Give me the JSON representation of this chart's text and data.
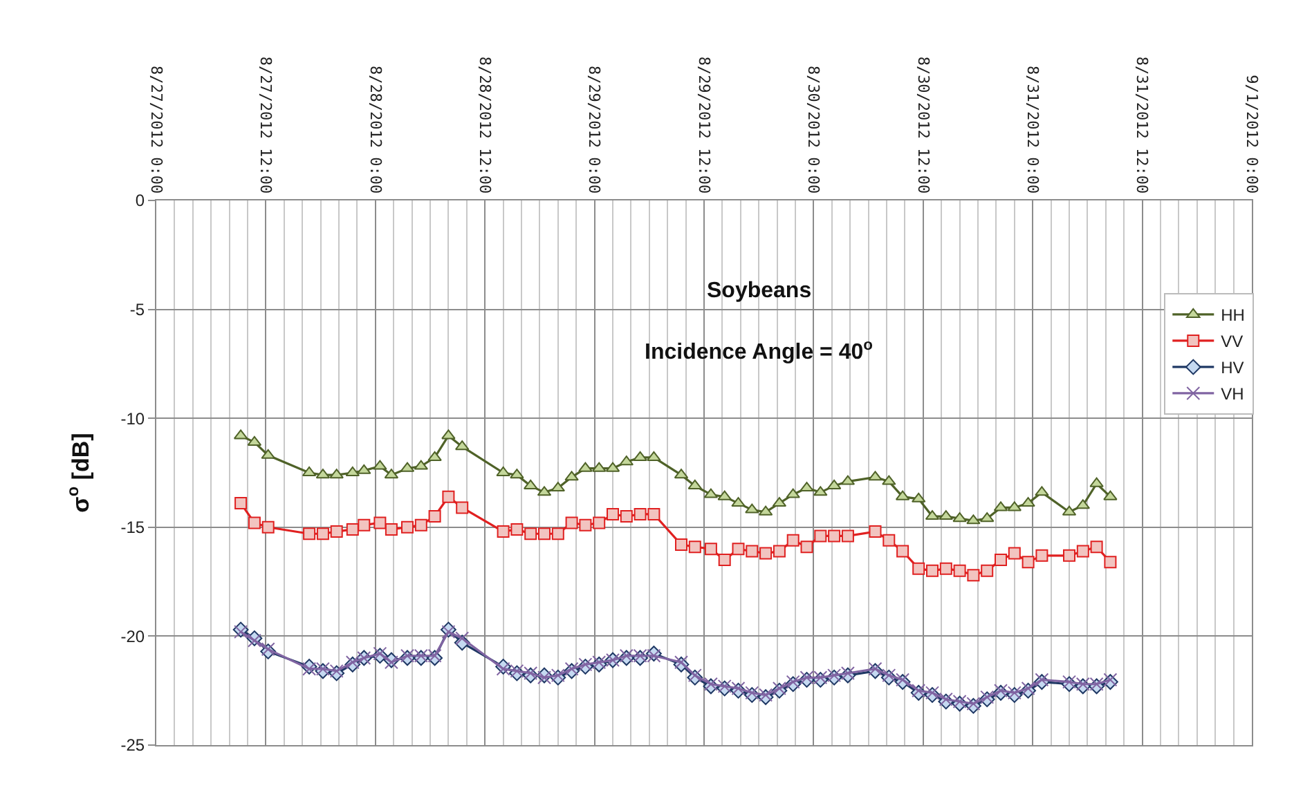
{
  "chart_data": {
    "type": "line",
    "title": "Soybeans",
    "subtitle": "Incidence Angle = 40$^{o}$",
    "ylabel": "σ$^{o}$ [dB]",
    "x": [
      "2012-08-27T09:15",
      "2012-08-27T10:45",
      "2012-08-27T12:15",
      "2012-08-27T16:45",
      "2012-08-27T18:15",
      "2012-08-27T19:45",
      "2012-08-27T21:30",
      "2012-08-27T22:45",
      "2012-08-28T00:30",
      "2012-08-28T01:45",
      "2012-08-28T03:30",
      "2012-08-28T05:00",
      "2012-08-28T06:30",
      "2012-08-28T08:00",
      "2012-08-28T09:30",
      "2012-08-28T14:00",
      "2012-08-28T15:30",
      "2012-08-28T17:00",
      "2012-08-28T18:30",
      "2012-08-28T20:00",
      "2012-08-28T21:30",
      "2012-08-28T23:00",
      "2012-08-29T00:30",
      "2012-08-29T02:00",
      "2012-08-29T03:30",
      "2012-08-29T05:00",
      "2012-08-29T06:30",
      "2012-08-29T09:30",
      "2012-08-29T11:00",
      "2012-08-29T12:45",
      "2012-08-29T14:15",
      "2012-08-29T15:45",
      "2012-08-29T17:15",
      "2012-08-29T18:45",
      "2012-08-29T20:15",
      "2012-08-29T21:45",
      "2012-08-29T23:15",
      "2012-08-30T00:45",
      "2012-08-30T02:15",
      "2012-08-30T03:45",
      "2012-08-30T06:45",
      "2012-08-30T08:15",
      "2012-08-30T09:45",
      "2012-08-30T11:30",
      "2012-08-30T13:00",
      "2012-08-30T14:30",
      "2012-08-30T16:00",
      "2012-08-30T17:30",
      "2012-08-30T19:00",
      "2012-08-30T20:30",
      "2012-08-30T22:00",
      "2012-08-30T23:30",
      "2012-08-31T01:00",
      "2012-08-31T04:00",
      "2012-08-31T05:30",
      "2012-08-31T07:00",
      "2012-08-31T08:30"
    ],
    "series": [
      {
        "name": "HH",
        "color": "#4f6228",
        "marker": "triangle",
        "values": [
          -10.8,
          -11.1,
          -11.7,
          -12.5,
          -12.6,
          -12.6,
          -12.5,
          -12.4,
          -12.2,
          -12.6,
          -12.3,
          -12.2,
          -11.8,
          -10.8,
          -11.3,
          -12.5,
          -12.6,
          -13.1,
          -13.4,
          -13.2,
          -12.7,
          -12.3,
          -12.3,
          -12.3,
          -12.0,
          -11.8,
          -11.8,
          -12.6,
          -13.1,
          -13.5,
          -13.6,
          -13.9,
          -14.2,
          -14.3,
          -13.9,
          -13.5,
          -13.2,
          -13.4,
          -13.1,
          -12.9,
          -12.7,
          -12.9,
          -13.6,
          -13.7,
          -14.5,
          -14.5,
          -14.6,
          -14.7,
          -14.6,
          -14.1,
          -14.1,
          -13.9,
          -13.4,
          -14.3,
          -14.0,
          -13.0,
          -13.6
        ]
      },
      {
        "name": "VV",
        "color": "#e02020",
        "marker": "square",
        "values": [
          -13.9,
          -14.8,
          -15.0,
          -15.3,
          -15.3,
          -15.2,
          -15.1,
          -14.9,
          -14.8,
          -15.1,
          -15.0,
          -14.9,
          -14.5,
          -13.6,
          -14.1,
          -15.2,
          -15.1,
          -15.3,
          -15.3,
          -15.3,
          -14.8,
          -14.9,
          -14.8,
          -14.4,
          -14.5,
          -14.4,
          -14.4,
          -15.8,
          -15.9,
          -16.0,
          -16.5,
          -16.0,
          -16.1,
          -16.2,
          -16.1,
          -15.6,
          -15.9,
          -15.4,
          -15.4,
          -15.4,
          -15.2,
          -15.6,
          -16.1,
          -16.9,
          -17.0,
          -16.9,
          -17.0,
          -17.2,
          -17.0,
          -16.5,
          -16.2,
          -16.6,
          -16.3,
          -16.3,
          -16.1,
          -15.9,
          -16.6
        ]
      },
      {
        "name": "HV",
        "color": "#1f3864",
        "marker": "diamond",
        "values": [
          -19.7,
          -20.1,
          -20.7,
          -21.4,
          -21.6,
          -21.7,
          -21.3,
          -21.0,
          -20.9,
          -21.1,
          -21.0,
          -21.0,
          -21.0,
          -19.7,
          -20.3,
          -21.4,
          -21.7,
          -21.8,
          -21.8,
          -21.9,
          -21.6,
          -21.4,
          -21.3,
          -21.1,
          -21.0,
          -21.0,
          -20.8,
          -21.3,
          -21.9,
          -22.3,
          -22.4,
          -22.5,
          -22.7,
          -22.8,
          -22.5,
          -22.2,
          -22.0,
          -22.0,
          -21.9,
          -21.8,
          -21.6,
          -21.9,
          -22.1,
          -22.6,
          -22.7,
          -23.0,
          -23.1,
          -23.2,
          -22.9,
          -22.6,
          -22.7,
          -22.5,
          -22.1,
          -22.2,
          -22.3,
          -22.3,
          -22.1
        ]
      },
      {
        "name": "VH",
        "color": "#8064a2",
        "marker": "cross",
        "values": [
          -19.8,
          -20.2,
          -20.6,
          -21.5,
          -21.5,
          -21.6,
          -21.2,
          -21.0,
          -20.8,
          -21.2,
          -20.9,
          -20.9,
          -20.9,
          -19.8,
          -20.1,
          -21.5,
          -21.6,
          -21.7,
          -21.9,
          -21.8,
          -21.5,
          -21.3,
          -21.2,
          -21.1,
          -20.9,
          -20.9,
          -20.9,
          -21.2,
          -21.8,
          -22.2,
          -22.3,
          -22.4,
          -22.6,
          -22.7,
          -22.4,
          -22.1,
          -21.9,
          -21.9,
          -21.8,
          -21.7,
          -21.5,
          -21.8,
          -22.0,
          -22.5,
          -22.6,
          -22.9,
          -23.0,
          -23.1,
          -22.8,
          -22.5,
          -22.6,
          -22.4,
          -22.0,
          -22.1,
          -22.2,
          -22.2,
          -22.0
        ]
      }
    ],
    "xlim": [
      "2012-08-27T00:00",
      "2012-09-01T00:00"
    ],
    "xticks": [
      {
        "value": "2012-08-27T00:00",
        "label": "8/27/2012 0:00"
      },
      {
        "value": "2012-08-27T12:00",
        "label": "8/27/2012 12:00"
      },
      {
        "value": "2012-08-28T00:00",
        "label": "8/28/2012 0:00"
      },
      {
        "value": "2012-08-28T12:00",
        "label": "8/28/2012 12:00"
      },
      {
        "value": "2012-08-29T00:00",
        "label": "8/29/2012 0:00"
      },
      {
        "value": "2012-08-29T12:00",
        "label": "8/29/2012 12:00"
      },
      {
        "value": "2012-08-30T00:00",
        "label": "8/30/2012 0:00"
      },
      {
        "value": "2012-08-30T12:00",
        "label": "8/30/2012 12:00"
      },
      {
        "value": "2012-08-31T00:00",
        "label": "8/31/2012 0:00"
      },
      {
        "value": "2012-08-31T12:00",
        "label": "8/31/2012 12:00"
      },
      {
        "value": "2012-09-01T00:00",
        "label": "9/1/2012 0:00"
      }
    ],
    "ylim": [
      -25,
      0
    ],
    "yticks": [
      -25,
      -20,
      -15,
      -10,
      -5,
      0
    ],
    "grid": true,
    "legend": "top right",
    "line_style": "solid"
  }
}
